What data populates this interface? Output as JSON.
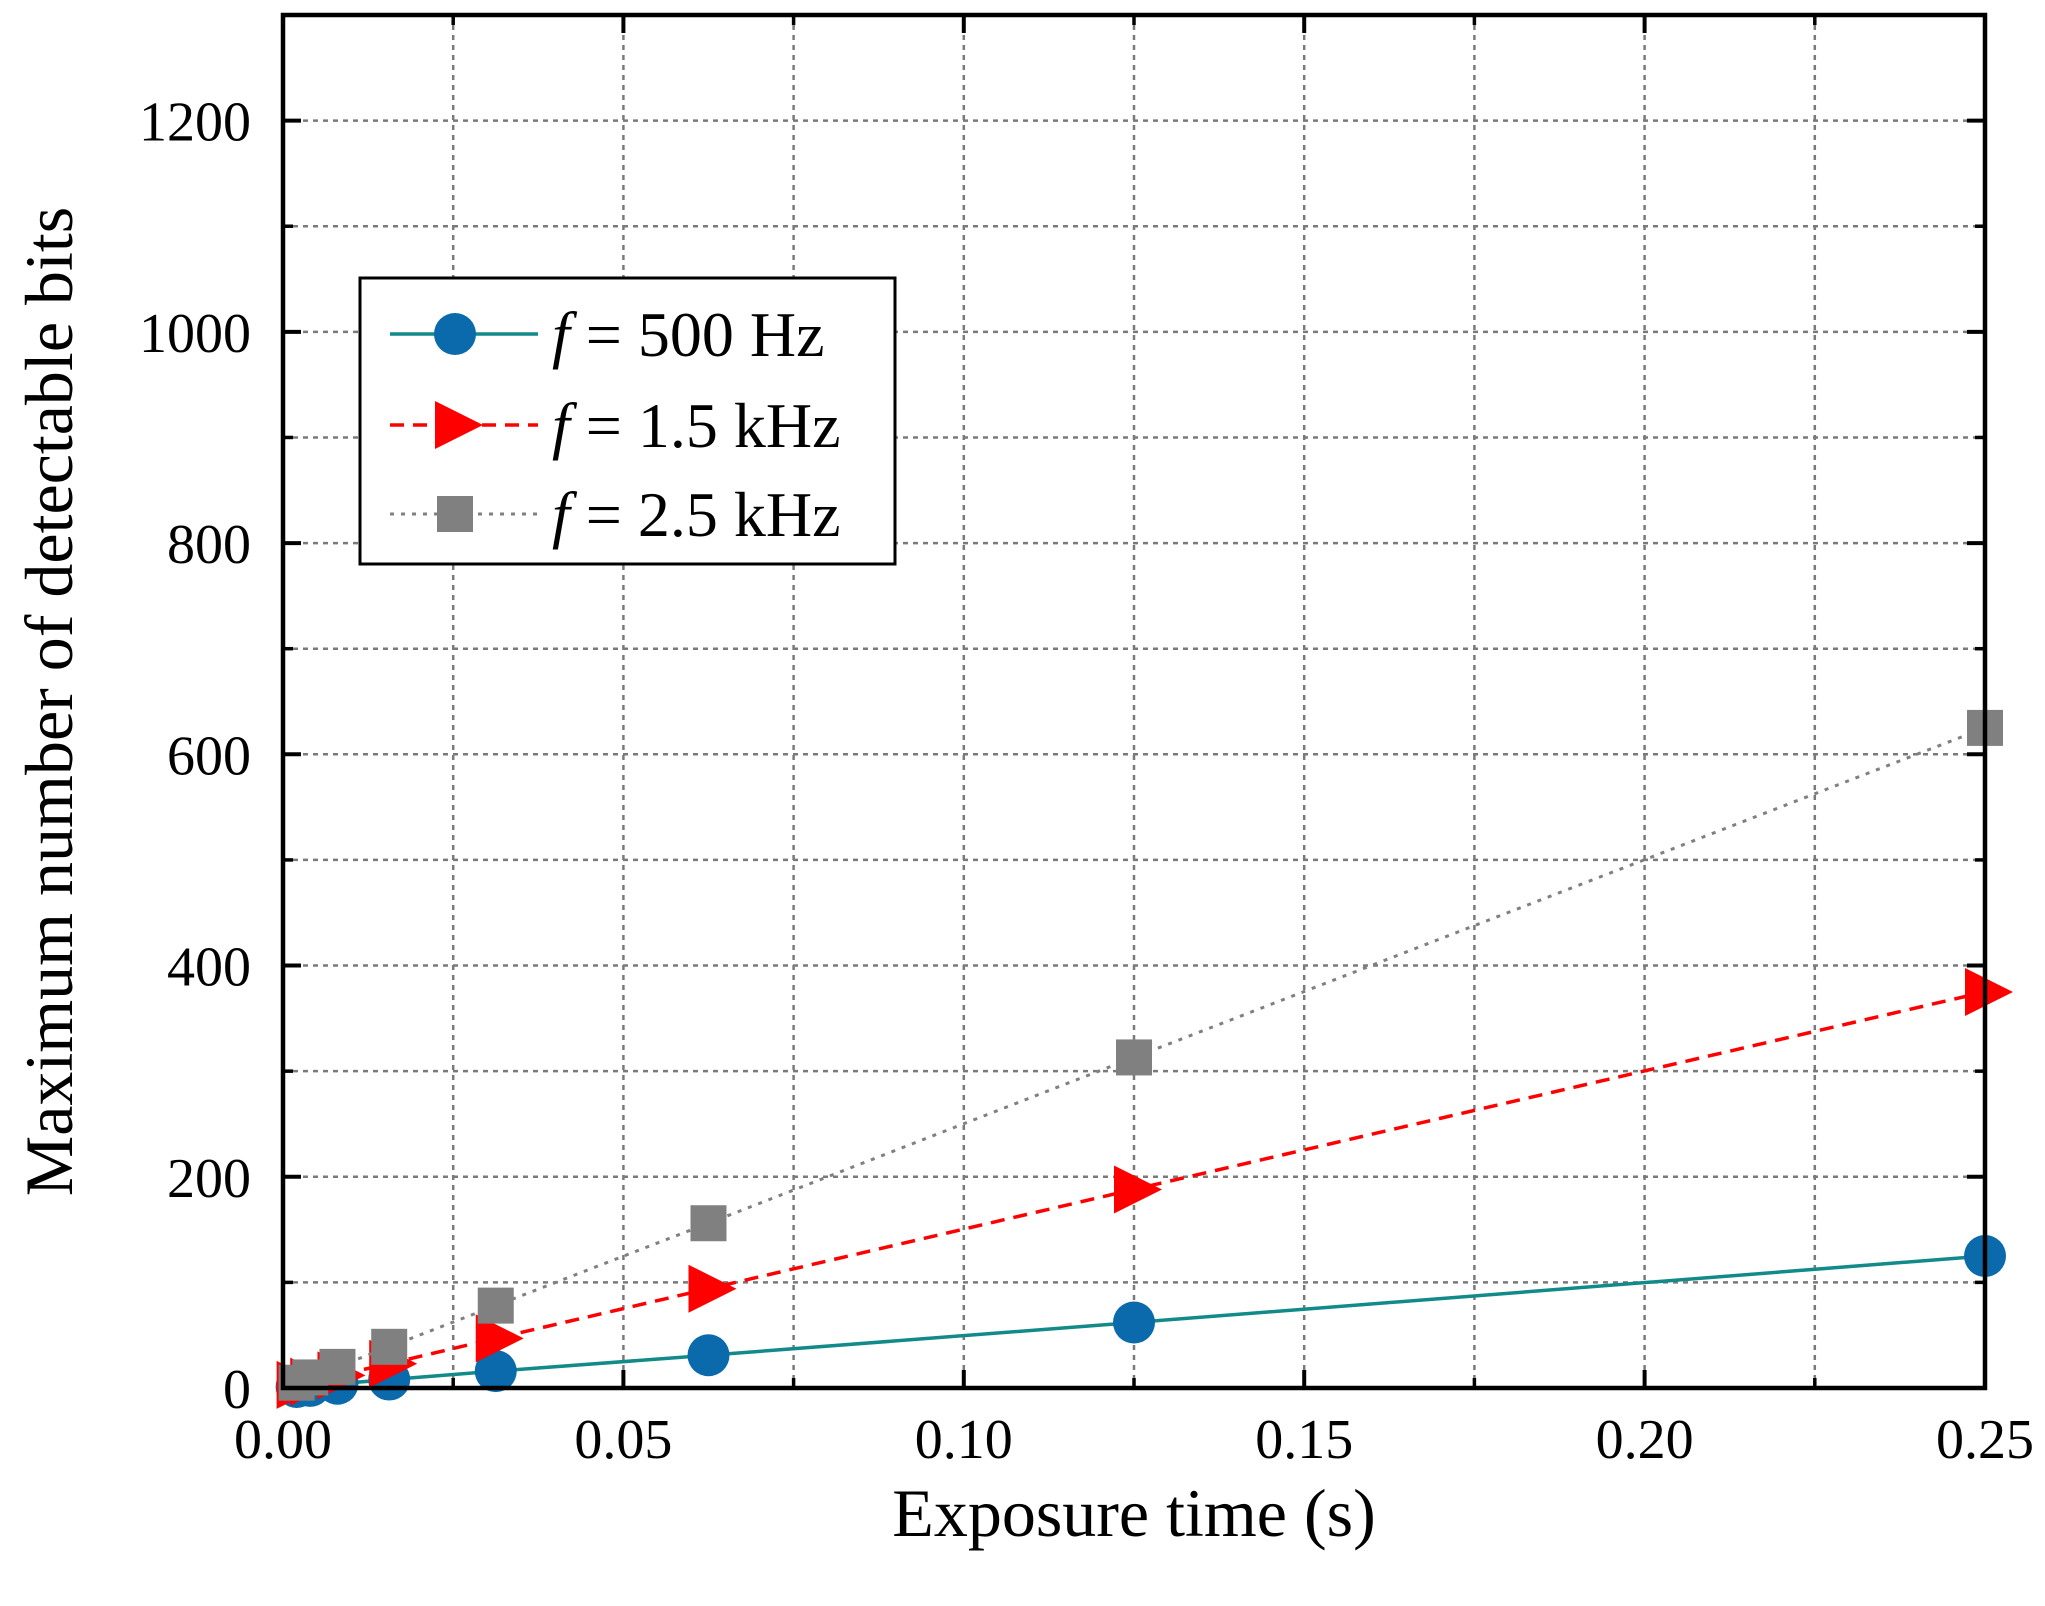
{
  "chart_data": {
    "type": "line",
    "title": "",
    "xlabel": "Exposure time (s)",
    "ylabel": "Maximum number of detectable bits",
    "xlim": [
      0,
      0.25
    ],
    "ylim": [
      0,
      1300
    ],
    "x_ticks": [
      0,
      0.05,
      0.1,
      0.15,
      0.2,
      0.25
    ],
    "x_tick_labels": [
      "0.00",
      "0.05",
      "0.10",
      "0.15",
      "0.20",
      "0.25"
    ],
    "x_minor_step": 0.025,
    "y_ticks": [
      0,
      200,
      400,
      600,
      800,
      1000,
      1200
    ],
    "y_tick_labels": [
      "0",
      "200",
      "400",
      "600",
      "800",
      "1000",
      "1200"
    ],
    "y_minor_step": 100,
    "grid": true,
    "legend_position": "upper-left",
    "series": [
      {
        "name": "f = 500 Hz",
        "legend_prefix": "f",
        "legend_suffix": "= 500 Hz",
        "marker": "circle",
        "color": "#0a6aab",
        "line_color": "#138a8a",
        "line_style": "solid",
        "x": [
          0.002,
          0.004,
          0.008,
          0.0156,
          0.03125,
          0.0625,
          0.125,
          0.25
        ],
        "y": [
          1,
          2,
          4,
          8,
          16,
          31,
          62,
          125
        ]
      },
      {
        "name": "f = 1.5 kHz",
        "legend_prefix": "f",
        "legend_suffix": "= 1.5 kHz",
        "marker": "triangle-right",
        "color": "#ff0000",
        "line_color": "#ff0000",
        "line_style": "dashed",
        "x": [
          0.002,
          0.004,
          0.008,
          0.0156,
          0.03125,
          0.0625,
          0.125,
          0.25
        ],
        "y": [
          3,
          6,
          12,
          23,
          47,
          94,
          188,
          375
        ]
      },
      {
        "name": "f = 2.5 kHz",
        "legend_prefix": "f",
        "legend_suffix": "= 2.5 kHz",
        "marker": "square",
        "color": "#808080",
        "line_color": "#808080",
        "line_style": "dotted",
        "x": [
          0.002,
          0.004,
          0.008,
          0.0156,
          0.03125,
          0.0625,
          0.125,
          0.25
        ],
        "y": [
          5,
          10,
          20,
          39,
          78,
          156,
          313,
          625
        ]
      }
    ]
  }
}
